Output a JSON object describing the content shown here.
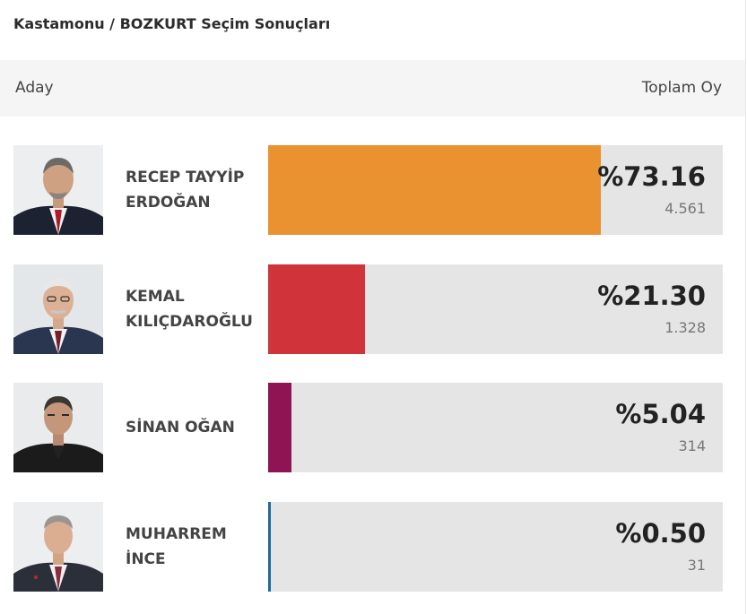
{
  "title": "Kastamonu / BOZKURT Seçim Sonuçları",
  "header": {
    "left": "Aday",
    "right": "Toplam Oy"
  },
  "candidates": [
    {
      "name_line1": "RECEP TAYYİP",
      "name_line2": "ERDOĞAN",
      "percent": "%73.16",
      "votes": "4.561",
      "share": 73.16,
      "color": "#ea922f",
      "icon": "candidate-photo-icon"
    },
    {
      "name_line1": "KEMAL",
      "name_line2": "KILIÇDAROĞLU",
      "percent": "%21.30",
      "votes": "1.328",
      "share": 21.3,
      "color": "#d0333a",
      "icon": "candidate-photo-icon"
    },
    {
      "name_line1": "SİNAN OĞAN",
      "name_line2": "",
      "percent": "%5.04",
      "votes": "314",
      "share": 5.04,
      "color": "#8e1454",
      "icon": "candidate-photo-icon"
    },
    {
      "name_line1": "MUHARREM",
      "name_line2": "İNCE",
      "percent": "%0.50",
      "votes": "31",
      "share": 0.5,
      "color": "#1f6a9a",
      "icon": "candidate-photo-icon"
    }
  ]
}
